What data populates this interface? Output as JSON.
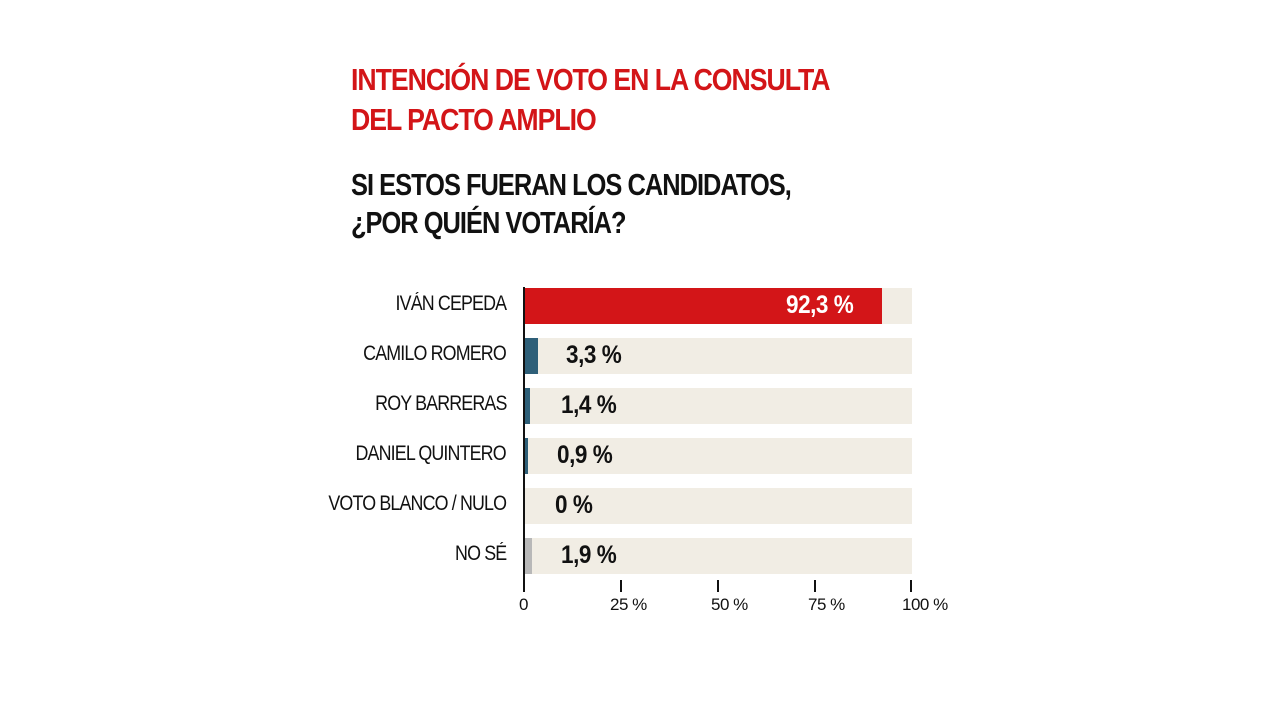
{
  "title": "INTENCIÓN DE VOTO EN LA CONSULTA DEL PACTO AMPLIO",
  "title_lines": [
    "INTENCIÓN DE VOTO EN LA CONSULTA",
    "DEL PACTO AMPLIO"
  ],
  "subtitle_lines": [
    "SI ESTOS FUERAN LOS CANDIDATOS,",
    "¿POR QUIÉN VOTARÍA?"
  ],
  "colors": {
    "title": "#d31518",
    "highlight": "#d31518",
    "candidate": "#2e5f78",
    "other": "#b8b8b8",
    "track": "#f1ede4"
  },
  "rows": [
    {
      "label": "IVÁN CEPEDA",
      "value": 92.3,
      "display": "92,3 %",
      "color": "#d31518"
    },
    {
      "label": "CAMILO ROMERO",
      "value": 3.3,
      "display": "3,3 %",
      "color": "#2e5f78"
    },
    {
      "label": "ROY BARRERAS",
      "value": 1.4,
      "display": "1,4 %",
      "color": "#2e5f78"
    },
    {
      "label": "DANIEL QUINTERO",
      "value": 0.9,
      "display": "0,9 %",
      "color": "#2e5f78"
    },
    {
      "label": "VOTO BLANCO / NULO",
      "value": 0,
      "display": "0 %",
      "color": "#2e5f78"
    },
    {
      "label": "NO SÉ",
      "value": 1.9,
      "display": "1,9 %",
      "color": "#b8b8b8"
    }
  ],
  "axis": {
    "ticks": [
      "0",
      "25 %",
      "50 %",
      "75 %",
      "100 %"
    ]
  },
  "chart_data": {
    "type": "bar",
    "orientation": "horizontal",
    "title": "INTENCIÓN DE VOTO EN LA CONSULTA DEL PACTO AMPLIO",
    "subtitle": "SI ESTOS FUERAN LOS CANDIDATOS, ¿POR QUIÉN VOTARÍA?",
    "categories": [
      "IVÁN CEPEDA",
      "CAMILO ROMERO",
      "ROY BARRERAS",
      "DANIEL QUINTERO",
      "VOTO BLANCO / NULO",
      "NO SÉ"
    ],
    "values": [
      92.3,
      3.3,
      1.4,
      0.9,
      0,
      1.9
    ],
    "xlabel": "",
    "ylabel": "",
    "xlim": [
      0,
      100
    ],
    "x_ticks": [
      "0",
      "25 %",
      "50 %",
      "75 %",
      "100 %"
    ],
    "grid": false,
    "legend": null,
    "unit": "%"
  }
}
